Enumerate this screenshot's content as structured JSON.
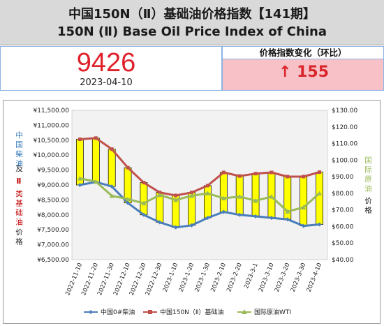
{
  "header": {
    "title_cn": "中国150N（Ⅱ）基础油价格指数【141期】",
    "title_en": "150N (Ⅱ) Base Oil Price Index of China"
  },
  "index_panel": {
    "value": "9426",
    "date": "2023-04-10",
    "change_label": "价格指数变化（环比）",
    "change_arrow": "↑",
    "change_value": "155"
  },
  "colors": {
    "diesel": "#4a7ebb",
    "baseoil": "#c0504d",
    "wti": "#9bbb59",
    "bar_fill": "#ffff00",
    "plot_bg": "#f2f2f2"
  },
  "chart_data": {
    "type": "line",
    "categories": [
      "2022-11-10",
      "2022-11-20",
      "2022-11-30",
      "2022-12-10",
      "2022-12-20",
      "2022-12-30",
      "2023-1-10",
      "2023-1-20",
      "2023-1-30",
      "2023-2-10",
      "2023-2-20",
      "2023-3-1",
      "2023-3-10",
      "2023-3-20",
      "2023-3-30",
      "2023-4-10"
    ],
    "series": [
      {
        "name": "中国0#柴油",
        "axis": "left",
        "values": [
          9000,
          9100,
          8950,
          8400,
          8000,
          7750,
          7580,
          7650,
          7900,
          8100,
          8000,
          7950,
          7900,
          7850,
          7630,
          7680
        ]
      },
      {
        "name": "中国150N（Ⅱ）基础油",
        "axis": "left",
        "values": [
          10530,
          10570,
          10200,
          9580,
          9080,
          8750,
          8650,
          8750,
          8980,
          9420,
          9300,
          9380,
          9420,
          9280,
          9280,
          9430
        ]
      },
      {
        "name": "国际原油WTI",
        "axis": "right",
        "values": [
          89,
          87,
          78.5,
          76.5,
          74,
          79,
          76,
          78.5,
          80,
          77,
          78,
          75.5,
          78,
          69,
          71.5,
          80
        ]
      }
    ],
    "y_left": {
      "min": 6500,
      "max": 11500,
      "ticks": [
        "¥6,500.00",
        "¥7,000.00",
        "¥7,500.00",
        "¥8,000.00",
        "¥8,500.00",
        "¥9,000.00",
        "¥9,500.00",
        "¥10,000.00",
        "¥10,500.00",
        "¥11,000.00",
        "¥11,500.00"
      ]
    },
    "y_right": {
      "min": 40,
      "max": 130,
      "ticks": [
        "$40.00",
        "$50.00",
        "$60.00",
        "$70.00",
        "$80.00",
        "$90.00",
        "$100.00",
        "$110.00",
        "$120.00",
        "$130.00"
      ]
    },
    "ylabel_left": {
      "diesel": "中国柴油",
      "and": "及",
      "roman": "Ⅱ",
      "baseoil": "类基础油",
      "price": "价格"
    },
    "ylabel_right": {
      "wti": "国际原油",
      "price": "价格"
    },
    "legend": {
      "position": "bottom",
      "items": [
        "中国0#柴油",
        "中国150N（Ⅱ）基础油",
        "国际原油WTI"
      ]
    },
    "grid": false
  }
}
